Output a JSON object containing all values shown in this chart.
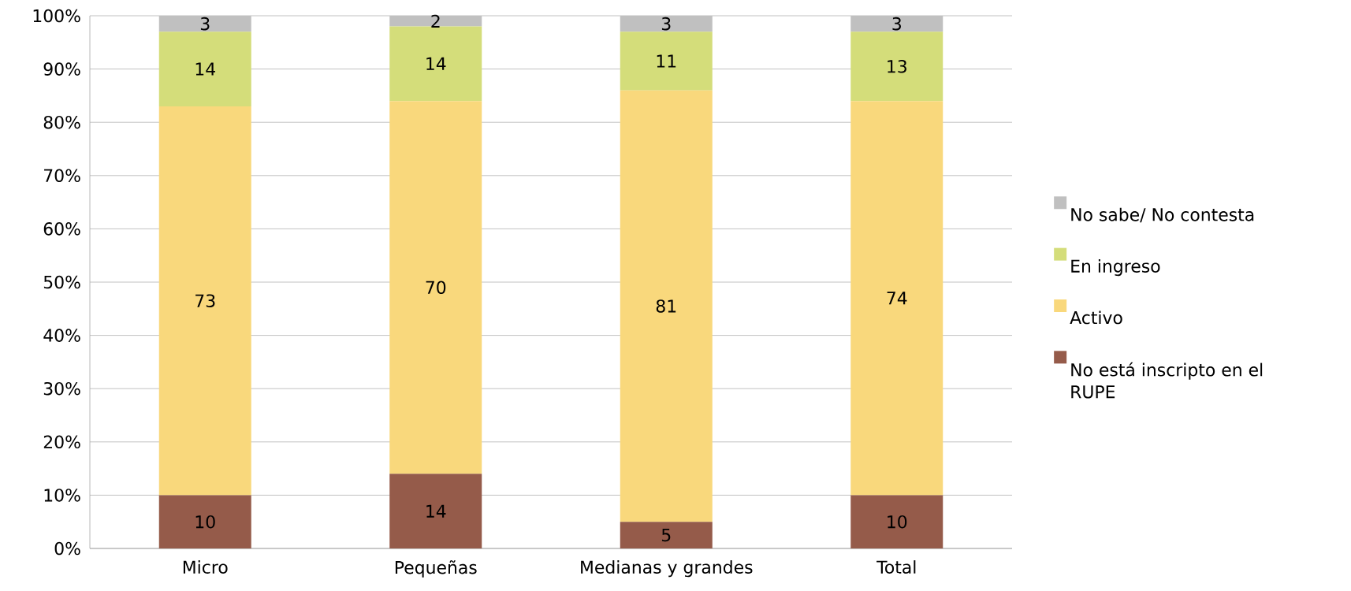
{
  "chart_data": {
    "type": "bar",
    "stacked": true,
    "categories": [
      "Micro",
      "Pequeñas",
      "Medianas y grandes",
      "Total"
    ],
    "series": [
      {
        "name": "No está inscripto en el RUPE",
        "color": "#955b4a",
        "values": [
          10,
          14,
          5,
          10
        ]
      },
      {
        "name": "Activo",
        "color": "#f9d87c",
        "values": [
          73,
          70,
          81,
          74
        ]
      },
      {
        "name": "En ingreso",
        "color": "#d4dd7a",
        "values": [
          14,
          14,
          11,
          13
        ]
      },
      {
        "name": "No sabe/ No contesta",
        "color": "#c0c0c0",
        "values": [
          3,
          2,
          3,
          3
        ]
      }
    ],
    "ylim": [
      0,
      100
    ],
    "yticks": [
      {
        "value": 0,
        "label": "0%"
      },
      {
        "value": 10,
        "label": "10%"
      },
      {
        "value": 20,
        "label": "20%"
      },
      {
        "value": 30,
        "label": "30%"
      },
      {
        "value": 40,
        "label": "40%"
      },
      {
        "value": 50,
        "label": "50%"
      },
      {
        "value": 60,
        "label": "60%"
      },
      {
        "value": 70,
        "label": "70%"
      },
      {
        "value": 80,
        "label": "80%"
      },
      {
        "value": 90,
        "label": "90%"
      },
      {
        "value": 100,
        "label": "100%"
      }
    ],
    "grid": "y",
    "legend": "right",
    "data_labels": true
  }
}
